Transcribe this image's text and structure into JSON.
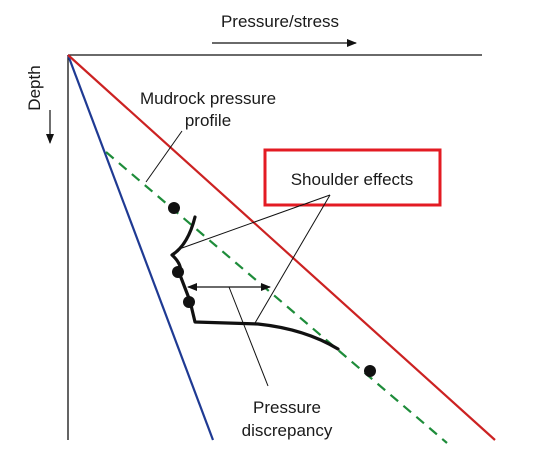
{
  "labels": {
    "x_axis": "Pressure/stress",
    "y_axis": "Depth",
    "mudrock_line1": "Mudrock pressure",
    "mudrock_line2": "profile",
    "shoulder": "Shoulder effects",
    "discrepancy_line1": "Pressure",
    "discrepancy_line2": "discrepancy"
  },
  "colors": {
    "hydrostatic_line": "#1f3a93",
    "overburden_line": "#cc2222",
    "mudrock_profile": "#1e8c3a",
    "callout_box": "#e31b23",
    "ink": "#111111"
  }
}
